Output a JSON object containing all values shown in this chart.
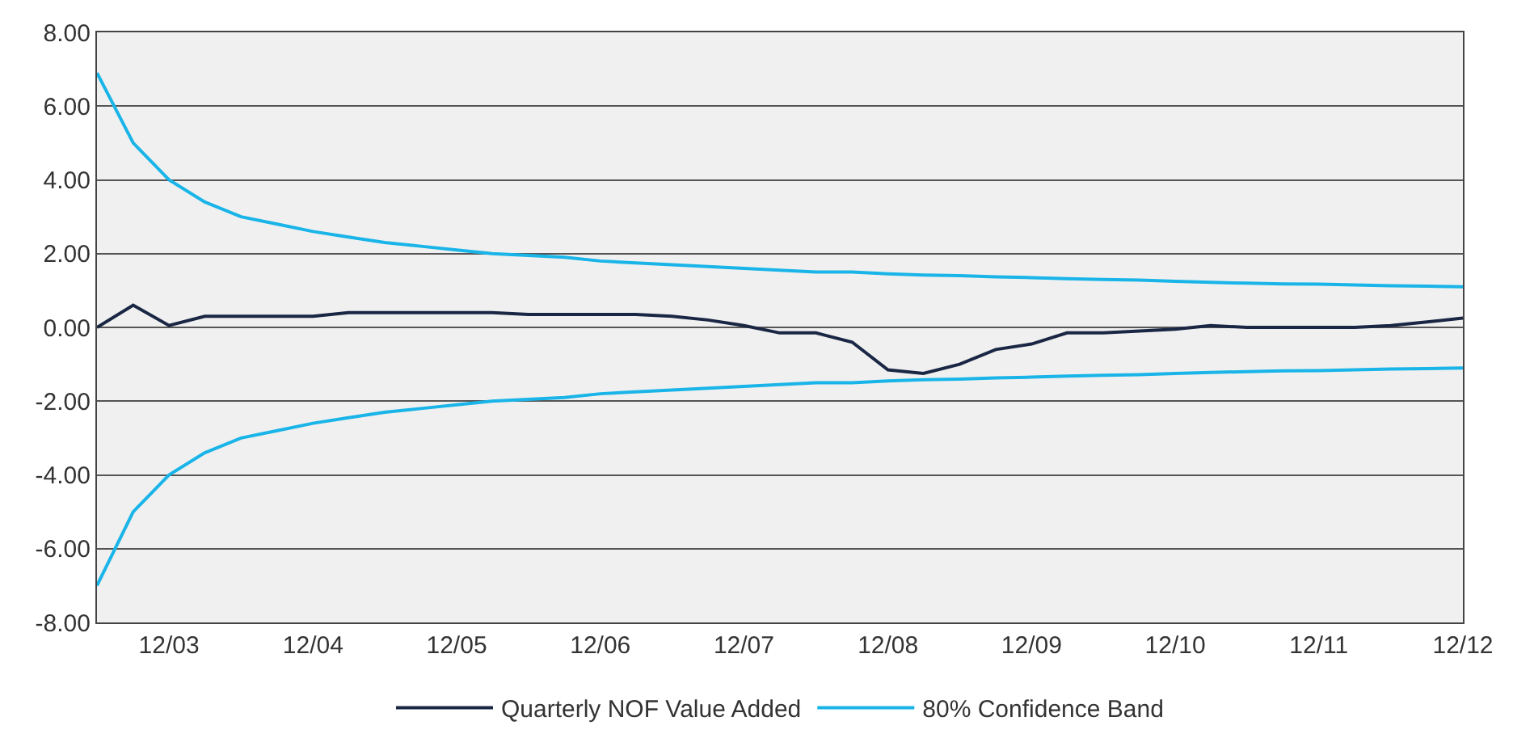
{
  "chart_data": {
    "type": "line",
    "x": [
      "2003-06",
      "2003-09",
      "2003-12",
      "2004-03",
      "2004-06",
      "2004-09",
      "2004-12",
      "2005-03",
      "2005-06",
      "2005-09",
      "2005-12",
      "2006-03",
      "2006-06",
      "2006-09",
      "2006-12",
      "2007-03",
      "2007-06",
      "2007-09",
      "2007-12",
      "2008-03",
      "2008-06",
      "2008-09",
      "2008-12",
      "2009-03",
      "2009-06",
      "2009-09",
      "2009-12",
      "2010-03",
      "2010-06",
      "2010-09",
      "2010-12",
      "2011-03",
      "2011-06",
      "2011-09",
      "2011-12",
      "2012-03",
      "2012-06",
      "2012-09",
      "2012-12"
    ],
    "series": [
      {
        "name": "Quarterly NOF Value Added",
        "color": "#1a2744",
        "values": [
          0.0,
          0.6,
          0.05,
          0.3,
          0.3,
          0.3,
          0.3,
          0.4,
          0.4,
          0.4,
          0.4,
          0.4,
          0.35,
          0.35,
          0.35,
          0.35,
          0.3,
          0.2,
          0.05,
          -0.15,
          -0.15,
          -0.4,
          -1.15,
          -1.25,
          -1.0,
          -0.6,
          -0.45,
          -0.15,
          -0.15,
          -0.1,
          -0.05,
          0.05,
          0.0,
          0.0,
          0.0,
          0.0,
          0.05,
          0.15,
          0.25
        ]
      },
      {
        "name": "80% Confidence Band",
        "color": "#19b4e8",
        "values": [
          6.9,
          5.0,
          4.0,
          3.4,
          3.0,
          2.8,
          2.6,
          2.45,
          2.3,
          2.2,
          2.1,
          2.0,
          1.95,
          1.9,
          1.8,
          1.75,
          1.7,
          1.65,
          1.6,
          1.55,
          1.5,
          1.5,
          1.45,
          1.42,
          1.4,
          1.37,
          1.35,
          1.32,
          1.3,
          1.28,
          1.25,
          1.22,
          1.2,
          1.18,
          1.17,
          1.15,
          1.13,
          1.12,
          1.1
        ]
      },
      {
        "color": "#19b4e8",
        "values": [
          -7.0,
          -5.0,
          -4.0,
          -3.4,
          -3.0,
          -2.8,
          -2.6,
          -2.45,
          -2.3,
          -2.2,
          -2.1,
          -2.0,
          -1.95,
          -1.9,
          -1.8,
          -1.75,
          -1.7,
          -1.65,
          -1.6,
          -1.55,
          -1.5,
          -1.5,
          -1.45,
          -1.42,
          -1.4,
          -1.37,
          -1.35,
          -1.32,
          -1.3,
          -1.28,
          -1.25,
          -1.22,
          -1.2,
          -1.18,
          -1.17,
          -1.15,
          -1.13,
          -1.12,
          -1.1
        ]
      }
    ],
    "xlim": [
      "2003-06",
      "2012-12"
    ],
    "xticks": [
      {
        "value": "2003-12",
        "label": "12/03"
      },
      {
        "value": "2004-12",
        "label": "12/04"
      },
      {
        "value": "2005-12",
        "label": "12/05"
      },
      {
        "value": "2006-12",
        "label": "12/06"
      },
      {
        "value": "2007-12",
        "label": "12/07"
      },
      {
        "value": "2008-12",
        "label": "12/08"
      },
      {
        "value": "2009-12",
        "label": "12/09"
      },
      {
        "value": "2010-12",
        "label": "12/10"
      },
      {
        "value": "2011-12",
        "label": "12/11"
      },
      {
        "value": "2012-12",
        "label": "12/12"
      }
    ],
    "ylim": [
      -8,
      8
    ],
    "yticks": [
      {
        "value": 8,
        "label": "8.00"
      },
      {
        "value": 6,
        "label": "6.00"
      },
      {
        "value": 4,
        "label": "4.00"
      },
      {
        "value": 2,
        "label": "2.00"
      },
      {
        "value": 0,
        "label": "0.00"
      },
      {
        "value": -2,
        "label": "-2.00"
      },
      {
        "value": -4,
        "label": "-4.00"
      },
      {
        "value": -6,
        "label": "-6.00"
      },
      {
        "value": -8,
        "label": "-8.00"
      }
    ],
    "grid": "y",
    "legend": "bottom",
    "marker": "none",
    "line_style": "solid"
  }
}
